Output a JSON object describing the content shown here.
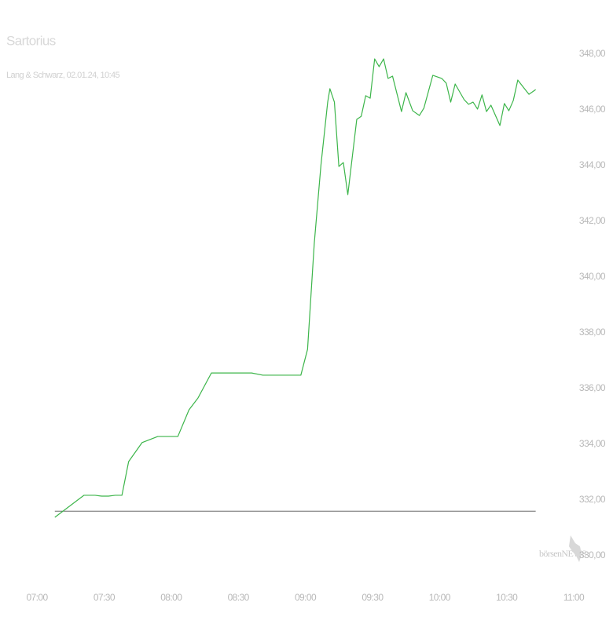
{
  "chart_data": {
    "type": "line",
    "title": "Sartorius",
    "subtitle": "Lang & Schwarz, 02.01.24, 10:45",
    "watermark": "börsenNEWS",
    "x": [
      "07:08",
      "07:21",
      "07:26",
      "07:29",
      "07:32",
      "07:35",
      "07:38",
      "07:41",
      "07:47",
      "07:54",
      "08:03",
      "08:08",
      "08:12",
      "08:18",
      "08:36",
      "08:41",
      "08:58",
      "09:01",
      "09:04",
      "09:07",
      "09:10",
      "09:11",
      "09:13",
      "09:15",
      "09:17",
      "09:19",
      "09:23",
      "09:25",
      "09:27",
      "09:29",
      "09:31",
      "09:33",
      "09:35",
      "09:37",
      "09:39",
      "09:43",
      "09:45",
      "09:48",
      "09:51",
      "09:53",
      "09:57",
      "10:01",
      "10:03",
      "10:05",
      "10:07",
      "10:11",
      "10:13",
      "10:15",
      "10:17",
      "10:19",
      "10:21",
      "10:23",
      "10:27",
      "10:29",
      "10:31",
      "10:33",
      "10:35",
      "10:38",
      "10:40",
      "10:43"
    ],
    "series": [
      {
        "name": "Sartorius",
        "color": "#3cb54a",
        "values": [
          331.38,
          332.17,
          332.17,
          332.14,
          332.14,
          332.17,
          332.17,
          333.38,
          334.06,
          334.28,
          334.28,
          335.24,
          335.66,
          336.56,
          336.56,
          336.48,
          336.48,
          337.41,
          341.21,
          344.03,
          346.28,
          346.76,
          346.28,
          343.97,
          344.11,
          342.96,
          345.66,
          345.77,
          346.51,
          346.42,
          347.83,
          347.55,
          347.83,
          347.13,
          347.21,
          345.94,
          346.62,
          345.97,
          345.8,
          346.06,
          347.24,
          347.13,
          346.96,
          346.28,
          346.93,
          346.37,
          346.2,
          346.28,
          346.03,
          346.54,
          345.94,
          346.17,
          345.44,
          346.23,
          345.97,
          346.34,
          347.07,
          346.76,
          346.56,
          346.73
        ]
      }
    ],
    "reference_line": 331.6,
    "reference_color": "#555555",
    "xlim": [
      "07:00",
      "11:00"
    ],
    "xticks": [
      "07:00",
      "07:30",
      "08:00",
      "08:30",
      "09:00",
      "09:30",
      "10:00",
      "10:30",
      "11:00"
    ],
    "ylim": [
      330,
      348.8
    ],
    "yticks": [
      {
        "value": 330,
        "label": "330,00"
      },
      {
        "value": 332,
        "label": "332,00"
      },
      {
        "value": 334,
        "label": "334,00"
      },
      {
        "value": 336,
        "label": "336,00"
      },
      {
        "value": 338,
        "label": "338,00"
      },
      {
        "value": 340,
        "label": "340,00"
      },
      {
        "value": 342,
        "label": "342,00"
      },
      {
        "value": 344,
        "label": "344,00"
      },
      {
        "value": 346,
        "label": "346,00"
      },
      {
        "value": 348,
        "label": "348,00"
      }
    ],
    "grid": false
  }
}
